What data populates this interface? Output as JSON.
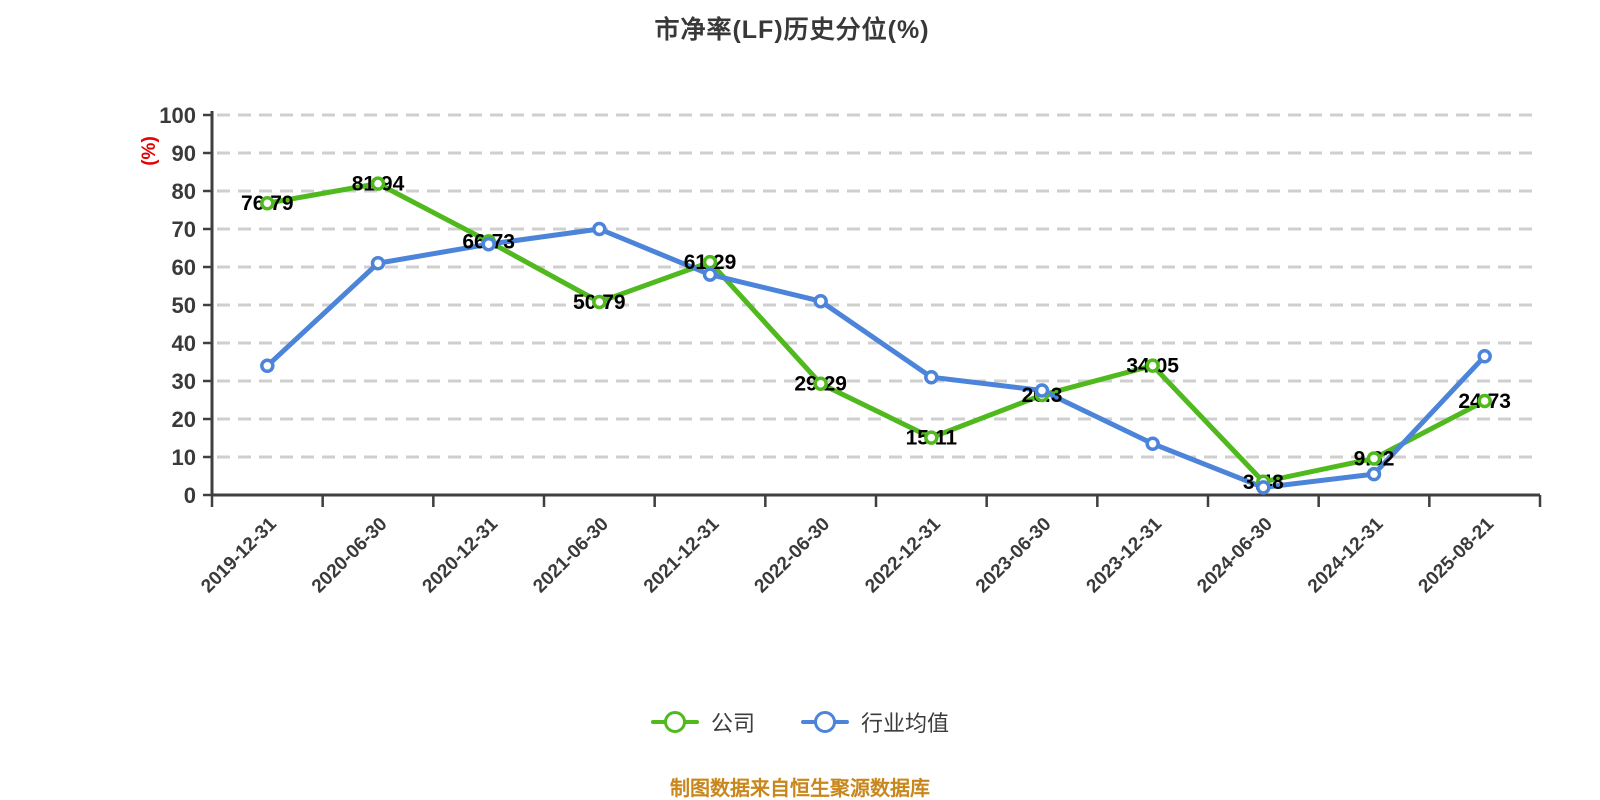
{
  "page": {
    "title": "市净率(LF)历史分位(%)",
    "y_unit_label": "(%)",
    "source_note": "制图数据来自恒生聚源数据库"
  },
  "colors": {
    "company_green": "#50b91e",
    "industry_blue": "#4c84da",
    "grid": "#cfcfcf",
    "axis": "#3f3f3f",
    "tick_text": "#3a3a3a",
    "data_label_text": "#000000",
    "title_text": "#383838",
    "y_unit_red": "#e60000",
    "source_text": "#c8861b",
    "marker_fill": "#ffffff"
  },
  "chart_data": {
    "type": "line",
    "title": "市净率(LF)历史分位(%)",
    "ylabel": "(%)",
    "ylim": [
      0,
      100
    ],
    "y_ticks": [
      0,
      10,
      20,
      30,
      40,
      50,
      60,
      70,
      80,
      90,
      100
    ],
    "grid": "horizontal-dashed",
    "legend_position": "bottom",
    "categories": [
      "2019-12-31",
      "2020-06-30",
      "2020-12-31",
      "2021-06-30",
      "2021-12-31",
      "2022-06-30",
      "2022-12-31",
      "2023-06-30",
      "2023-12-31",
      "2024-06-30",
      "2024-12-31",
      "2025-08-21"
    ],
    "series": [
      {
        "name": "公司",
        "color": "#50b91e",
        "values": [
          76.79,
          81.94,
          66.73,
          50.79,
          61.29,
          29.29,
          15.11,
          26.3,
          34.05,
          3.48,
          9.62,
          24.73
        ],
        "point_labels": [
          "76.79",
          "81.94",
          "66.73",
          "50.79",
          "61.29",
          "29.29",
          "15.11",
          "26.3",
          "34.05",
          "3.48",
          "9.62",
          "24.73"
        ],
        "labels_shown": true
      },
      {
        "name": "行业均值",
        "color": "#4c84da",
        "values": [
          34,
          61,
          66,
          70,
          58,
          51,
          31,
          27.5,
          13.5,
          2,
          5.5,
          36.5
        ],
        "point_labels": [],
        "labels_shown": false
      }
    ]
  }
}
